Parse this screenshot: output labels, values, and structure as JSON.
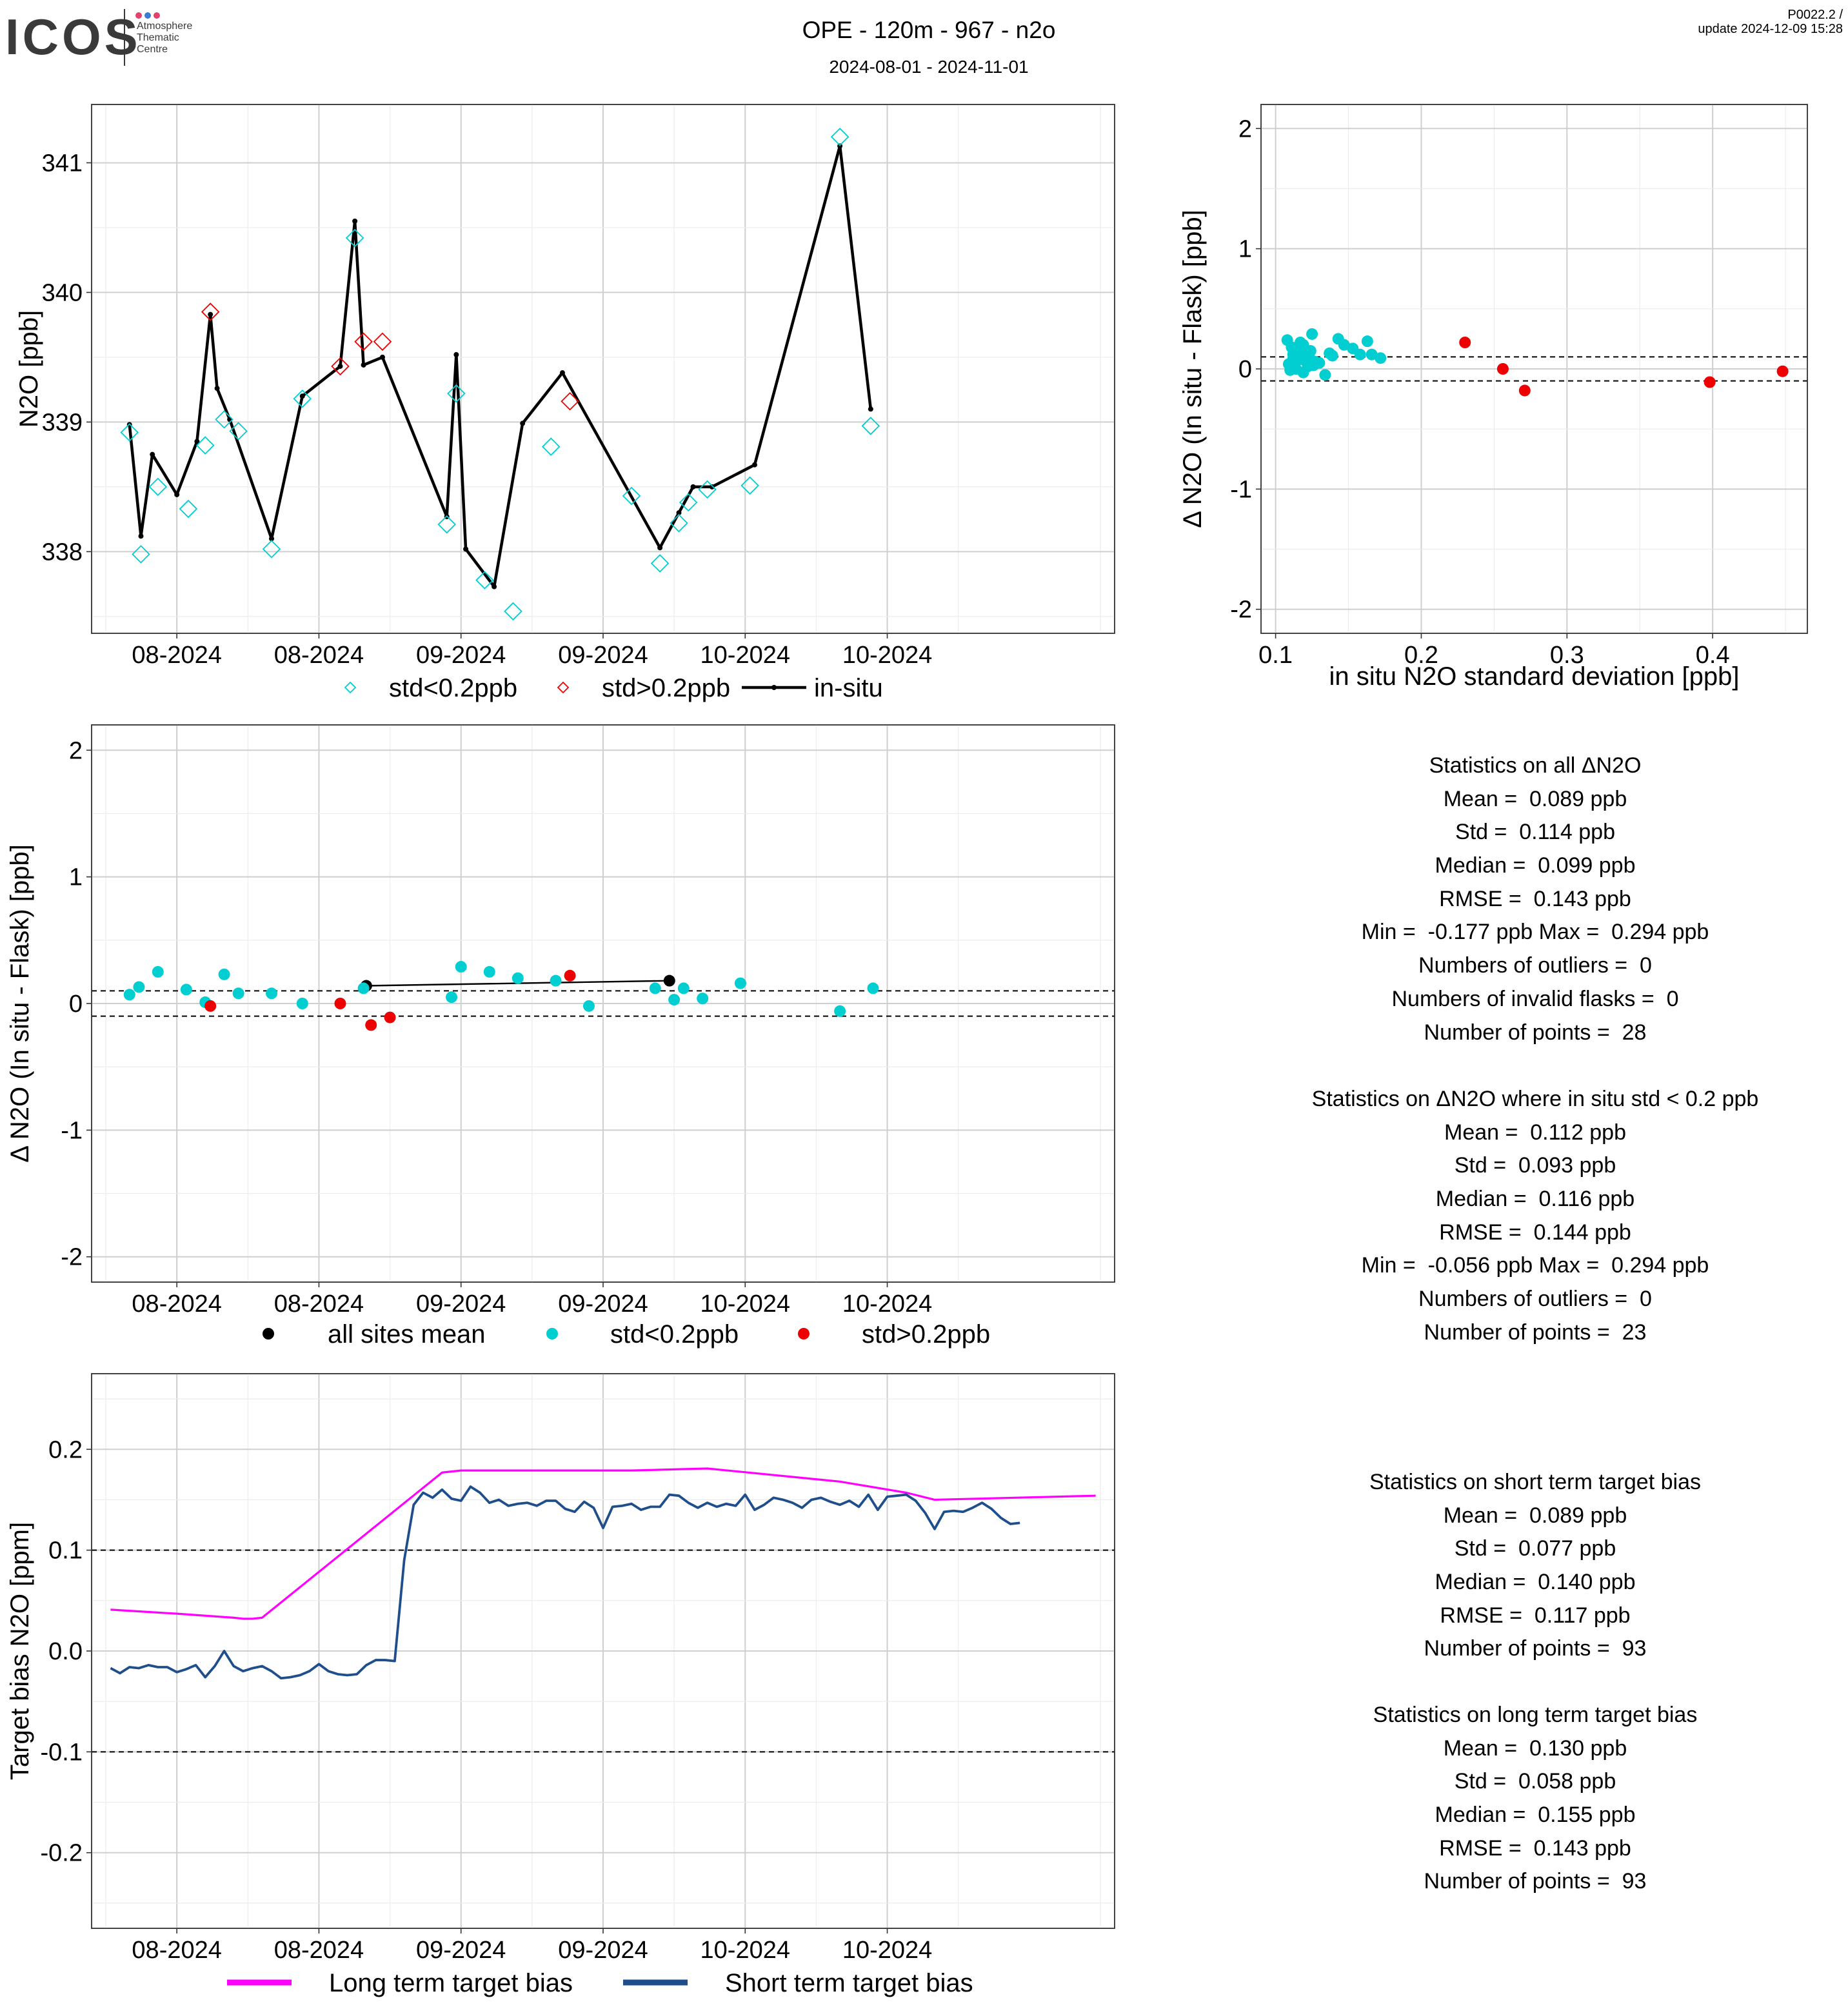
{
  "header": {
    "logo_text": "ICOS",
    "logo_sub": [
      "Atmosphere",
      "Thematic",
      "Centre"
    ],
    "title": "OPE - 120m - 967 - n2o",
    "subtitle": "2024-08-01 - 2024-11-01",
    "version_line1": "P0022.2 /",
    "version_line2": "update  2024-12-09 15:28"
  },
  "colors": {
    "cyan": "#00CED1",
    "red": "#EE0000",
    "black": "#000000",
    "magenta": "#FF00FF",
    "navy": "#1F4E8C",
    "grid_major": "#cfcfcf",
    "grid_minor": "#ececec"
  },
  "chart_data": [
    {
      "id": "timeseries",
      "type": "line",
      "ylabel": "N2O [ppb]",
      "xlim": [
        "2024-07-23",
        "2024-11-08"
      ],
      "ylim": [
        337.37,
        341.45
      ],
      "yticks": [
        338,
        339,
        340,
        341
      ],
      "xticks": [
        {
          "date": "2024-08-01",
          "label": "08-2024"
        },
        {
          "date": "2024-08-16",
          "label": "08-2024"
        },
        {
          "date": "2024-08-31",
          "label": "09-2024"
        },
        {
          "date": "2024-09-15",
          "label": "09-2024"
        },
        {
          "date": "2024-09-30",
          "label": "10-2024"
        },
        {
          "date": "2024-10-15",
          "label": "10-2024"
        }
      ],
      "legend": [
        "std<0.2ppb",
        "std>0.2ppb",
        "in-situ"
      ],
      "insitu": {
        "name": "in-situ",
        "x": [
          "2024-07-27T00:00",
          "2024-07-28T05:00",
          "2024-07-29T10:00",
          "2024-08-01T00:00",
          "2024-08-03T03:00",
          "2024-08-04T13:00",
          "2024-08-05T06:00",
          "2024-08-06T14:00",
          "2024-08-11T00:00",
          "2024-08-14T06:00",
          "2024-08-18T06:00",
          "2024-08-19T19:00",
          "2024-08-20T17:00",
          "2024-08-22T17:00",
          "2024-08-29T12:00",
          "2024-08-30T12:00",
          "2024-08-31T12:00",
          "2024-09-03T12:00",
          "2024-09-06T12:00",
          "2024-09-10T17:00",
          "2024-09-21T00:00",
          "2024-09-23T00:00",
          "2024-09-24T12:00",
          "2024-09-26T12:00",
          "2024-10-01T00:00",
          "2024-10-10T00:00",
          "2024-10-13T06:00"
        ],
        "y": [
          338.98,
          338.12,
          338.75,
          338.44,
          338.85,
          339.83,
          339.26,
          339.02,
          338.1,
          339.2,
          339.43,
          340.55,
          339.44,
          339.5,
          338.27,
          339.52,
          338.02,
          337.73,
          338.99,
          339.38,
          338.03,
          338.3,
          338.5,
          338.5,
          338.67,
          341.13,
          339.1
        ]
      },
      "flask_ok": {
        "name": "std<0.2ppb",
        "x": [
          "2024-07-27T00:00",
          "2024-07-28T05:00",
          "2024-07-30T00:00",
          "2024-08-02T05:00",
          "2024-08-04T00:00",
          "2024-08-06T00:00",
          "2024-08-07T12:00",
          "2024-08-11T00:00",
          "2024-08-14T06:00",
          "2024-08-19T19:00",
          "2024-08-29T12:00",
          "2024-08-30T12:00",
          "2024-09-02T12:00",
          "2024-09-05T12:00",
          "2024-09-09T12:00",
          "2024-09-18T00:00",
          "2024-09-21T00:00",
          "2024-09-23T00:00",
          "2024-09-24T00:00",
          "2024-09-26T00:00",
          "2024-09-30T12:00",
          "2024-10-10T00:00",
          "2024-10-13T06:00"
        ],
        "y": [
          338.92,
          337.98,
          338.5,
          338.33,
          338.82,
          339.02,
          338.93,
          338.02,
          339.18,
          340.42,
          338.21,
          339.22,
          337.78,
          337.54,
          338.81,
          338.43,
          337.91,
          338.22,
          338.38,
          338.48,
          338.51,
          341.2,
          338.97
        ]
      },
      "flask_bad": {
        "name": "std>0.2ppb",
        "x": [
          "2024-08-04T13:00",
          "2024-08-18T06:00",
          "2024-08-20T17:00",
          "2024-08-22T17:00",
          "2024-09-11T12:00"
        ],
        "y": [
          339.85,
          339.43,
          339.62,
          339.62,
          339.16
        ]
      }
    },
    {
      "id": "scatter",
      "type": "scatter",
      "xlabel": "in situ N2O standard deviation [ppb]",
      "ylabel": "Δ N2O (In situ - Flask) [ppb]",
      "xlim": [
        0.09,
        0.465
      ],
      "ylim": [
        -2.2,
        2.2
      ],
      "xticks": [
        0.1,
        0.2,
        0.3,
        0.4
      ],
      "yticks": [
        -2,
        -1,
        0,
        1,
        2
      ],
      "hlines": [
        0.1,
        -0.1
      ],
      "ok": {
        "x": [
          0.108,
          0.111,
          0.112,
          0.113,
          0.115,
          0.117,
          0.118,
          0.119,
          0.121,
          0.122,
          0.124,
          0.125,
          0.127,
          0.11,
          0.114,
          0.116,
          0.12,
          0.123,
          0.13,
          0.134,
          0.137,
          0.139,
          0.143,
          0.147,
          0.153,
          0.158,
          0.163,
          0.166,
          0.172,
          0.119,
          0.126,
          0.109,
          0.112
        ],
        "y": [
          0.24,
          0.18,
          0.12,
          0.05,
          0.14,
          0.22,
          0.08,
          0.2,
          0.1,
          0.02,
          0.15,
          0.29,
          0.06,
          -0.01,
          0.0,
          0.1,
          0.16,
          0.12,
          0.05,
          -0.05,
          0.13,
          0.11,
          0.25,
          0.2,
          0.17,
          0.12,
          0.23,
          0.12,
          0.09,
          -0.03,
          0.03,
          0.04,
          0.08
        ]
      },
      "bad": {
        "x": [
          0.23,
          0.256,
          0.271,
          0.398,
          0.448
        ],
        "y": [
          0.22,
          0.0,
          -0.18,
          -0.11,
          -0.02
        ]
      }
    },
    {
      "id": "delta",
      "type": "scatter",
      "ylabel": "Δ N2O (In situ - Flask) [ppb]",
      "xlim": [
        "2024-07-23",
        "2024-11-08"
      ],
      "ylim": [
        -2.2,
        2.2
      ],
      "yticks": [
        -2,
        -1,
        0,
        1,
        2
      ],
      "xticks": [
        {
          "date": "2024-08-01",
          "label": "08-2024"
        },
        {
          "date": "2024-08-16",
          "label": "08-2024"
        },
        {
          "date": "2024-08-31",
          "label": "09-2024"
        },
        {
          "date": "2024-09-15",
          "label": "09-2024"
        },
        {
          "date": "2024-09-30",
          "label": "10-2024"
        },
        {
          "date": "2024-10-15",
          "label": "10-2024"
        }
      ],
      "hlines": [
        0.1,
        -0.1
      ],
      "legend": [
        "all sites mean",
        "std<0.2ppb",
        "std>0.2ppb"
      ],
      "mean": {
        "x": [
          "2024-08-21T00:00",
          "2024-09-22T00:00"
        ],
        "y": [
          0.14,
          0.18
        ]
      },
      "ok": {
        "x": [
          "2024-07-27T00:00",
          "2024-07-28T00:00",
          "2024-07-30T00:00",
          "2024-08-02T00:00",
          "2024-08-04T00:00",
          "2024-08-06T00:00",
          "2024-08-07T12:00",
          "2024-08-11T00:00",
          "2024-08-14T06:00",
          "2024-08-20T17:00",
          "2024-08-30T00:00",
          "2024-08-31T00:00",
          "2024-09-03T00:00",
          "2024-09-06T00:00",
          "2024-09-10T00:00",
          "2024-09-13T12:00",
          "2024-09-20T12:00",
          "2024-09-22T12:00",
          "2024-09-23T12:00",
          "2024-09-25T12:00",
          "2024-09-29T12:00",
          "2024-10-10T00:00",
          "2024-10-13T12:00"
        ],
        "y": [
          0.07,
          0.13,
          0.25,
          0.11,
          0.01,
          0.23,
          0.08,
          0.08,
          0.0,
          0.12,
          0.05,
          0.29,
          0.25,
          0.2,
          0.18,
          -0.02,
          0.12,
          0.03,
          0.12,
          0.04,
          0.16,
          -0.06,
          0.12
        ]
      },
      "bad": {
        "x": [
          "2024-08-04T13:00",
          "2024-08-18T06:00",
          "2024-08-21T12:00",
          "2024-08-23T12:00",
          "2024-09-11T12:00"
        ],
        "y": [
          -0.02,
          0.0,
          -0.17,
          -0.11,
          0.22
        ]
      }
    },
    {
      "id": "bias",
      "type": "line",
      "ylabel": "Target bias N2O [ppm]",
      "xlim": [
        "2024-07-23",
        "2024-11-08"
      ],
      "ylim": [
        -0.275,
        0.275
      ],
      "yticks": [
        -0.2,
        -0.1,
        0.0,
        0.1,
        0.2
      ],
      "xticks": [
        {
          "date": "2024-08-01",
          "label": "08-2024"
        },
        {
          "date": "2024-08-16",
          "label": "08-2024"
        },
        {
          "date": "2024-08-31",
          "label": "09-2024"
        },
        {
          "date": "2024-09-15",
          "label": "09-2024"
        },
        {
          "date": "2024-09-30",
          "label": "10-2024"
        },
        {
          "date": "2024-10-15",
          "label": "10-2024"
        }
      ],
      "hlines": [
        0.1,
        -0.1
      ],
      "legend": [
        "Long term target bias",
        "Short term target bias"
      ],
      "long_term": {
        "name": "Long term target bias",
        "x": [
          "2024-07-25",
          "2024-08-01",
          "2024-08-07",
          "2024-08-08",
          "2024-08-09",
          "2024-08-10",
          "2024-08-29",
          "2024-08-31",
          "2024-09-18",
          "2024-09-26",
          "2024-10-10",
          "2024-10-17",
          "2024-10-20",
          "2024-11-06"
        ],
        "y": [
          0.041,
          0.037,
          0.033,
          0.032,
          0.032,
          0.033,
          0.177,
          0.179,
          0.179,
          0.181,
          0.168,
          0.157,
          0.15,
          0.154
        ]
      },
      "short_term": {
        "name": "Short term target bias",
        "start": "2024-07-25",
        "step_days": 1.0,
        "y": [
          -0.017,
          -0.022,
          -0.016,
          -0.017,
          -0.014,
          -0.016,
          -0.016,
          -0.021,
          -0.018,
          -0.014,
          -0.026,
          -0.015,
          0.0,
          -0.015,
          -0.02,
          -0.017,
          -0.015,
          -0.02,
          -0.027,
          -0.026,
          -0.024,
          -0.02,
          -0.013,
          -0.02,
          -0.023,
          -0.024,
          -0.023,
          -0.014,
          -0.009,
          -0.009,
          -0.01,
          0.09,
          0.145,
          0.157,
          0.152,
          0.16,
          0.151,
          0.149,
          0.163,
          0.157,
          0.147,
          0.15,
          0.144,
          0.146,
          0.147,
          0.144,
          0.149,
          0.149,
          0.141,
          0.138,
          0.148,
          0.142,
          0.122,
          0.143,
          0.144,
          0.146,
          0.14,
          0.143,
          0.143,
          0.155,
          0.154,
          0.147,
          0.142,
          0.147,
          0.143,
          0.146,
          0.144,
          0.155,
          0.14,
          0.145,
          0.152,
          0.15,
          0.147,
          0.142,
          0.15,
          0.152,
          0.148,
          0.145,
          0.149,
          0.143,
          0.155,
          0.14,
          0.153,
          0.154,
          0.155,
          0.149,
          0.137,
          0.121,
          0.138,
          0.139,
          0.138,
          0.142,
          0.147,
          0.141,
          0.132,
          0.126,
          0.127
        ]
      }
    }
  ],
  "stats_all": {
    "title": "Statistics on all ΔN2O",
    "lines": [
      "Mean =  0.089 ppb",
      "Std =  0.114 ppb",
      "Median =  0.099 ppb",
      "RMSE =  0.143 ppb",
      "Min =  -0.177 ppb Max =  0.294 ppb",
      "Numbers of outliers =  0",
      "Numbers of invalid flasks =  0",
      "Number of points =  28"
    ]
  },
  "stats_std": {
    "title": "Statistics on ΔN2O where in situ std < 0.2 ppb",
    "lines": [
      "Mean =  0.112 ppb",
      "Std =  0.093 ppb",
      "Median =  0.116 ppb",
      "RMSE =  0.144 ppb",
      "Min =  -0.056 ppb Max =  0.294 ppb",
      "Numbers of outliers =  0",
      "Number of points =  23"
    ]
  },
  "stats_short": {
    "title": "Statistics on short term target bias",
    "lines": [
      "Mean =  0.089 ppb",
      "Std =  0.077 ppb",
      "Median =  0.140 ppb",
      "RMSE =  0.117 ppb",
      "Number of points =  93"
    ]
  },
  "stats_long": {
    "title": "Statistics on long term target bias",
    "lines": [
      "Mean =  0.130 ppb",
      "Std =  0.058 ppb",
      "Median =  0.155 ppb",
      "RMSE =  0.143 ppb",
      "Number of points =  93"
    ]
  }
}
